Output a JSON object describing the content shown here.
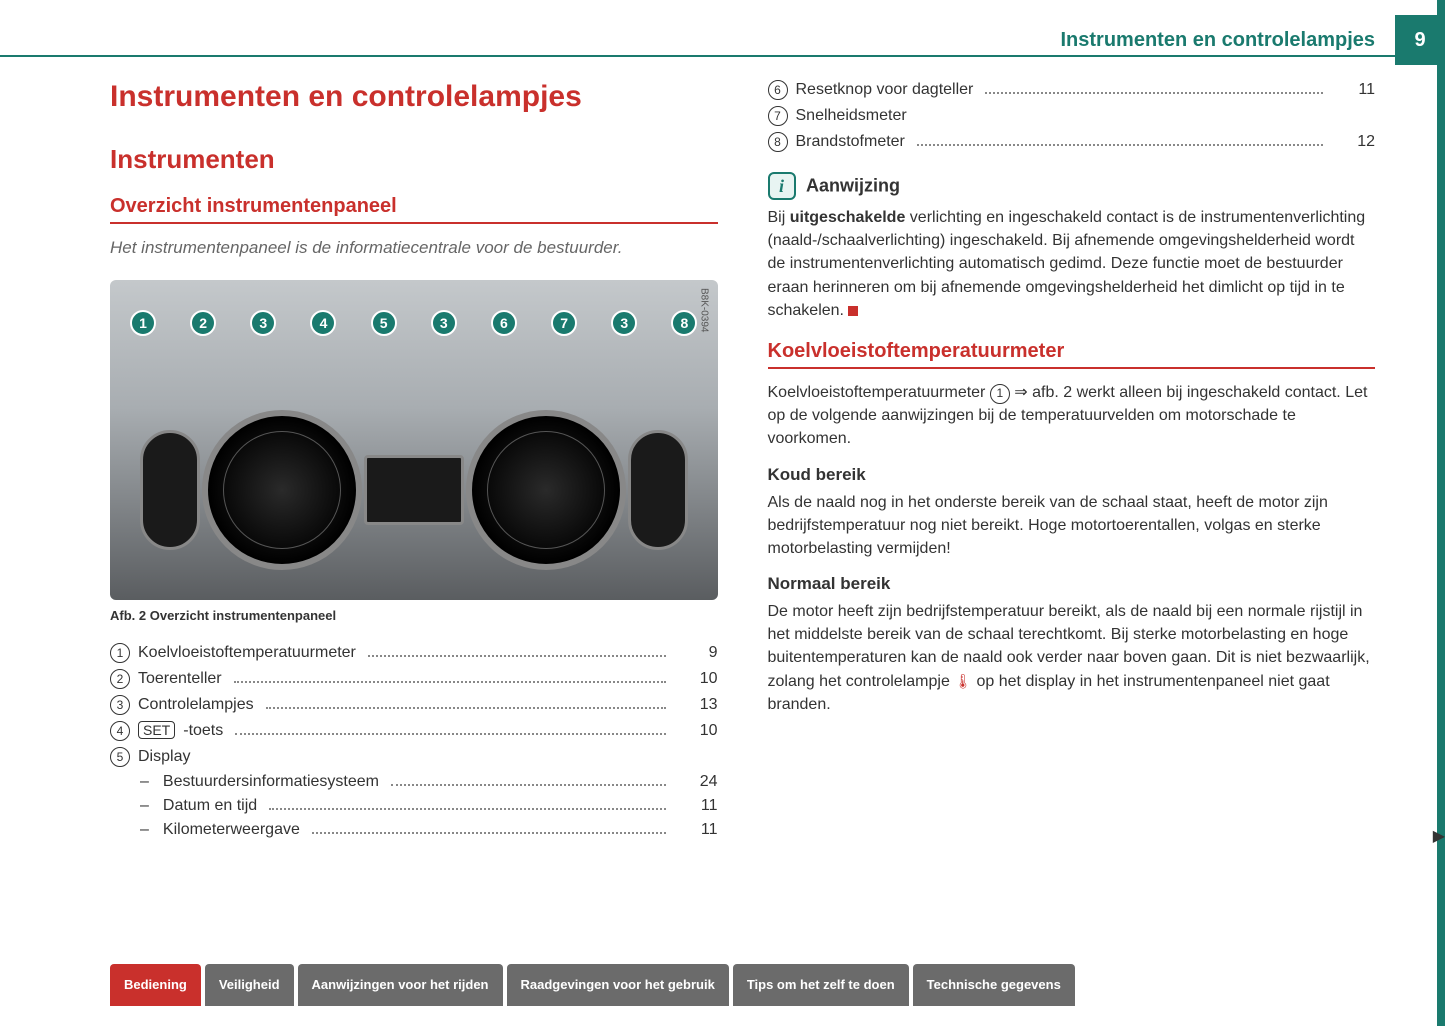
{
  "header": {
    "running_title": "Instrumenten en controlelampjes",
    "page_number": "9"
  },
  "title": "Instrumenten en controlelampjes",
  "section_title": "Instrumenten",
  "subsection_title": "Overzicht instrumentenpaneel",
  "intro": "Het instrumentenpaneel is de informatiecentrale voor de bestuurder.",
  "figure": {
    "ref_code": "B8K-0394",
    "callouts": [
      "1",
      "2",
      "3",
      "4",
      "5",
      "3",
      "6",
      "7",
      "3",
      "8"
    ],
    "caption": "Afb. 2  Overzicht instrumentenpaneel"
  },
  "toc_left": [
    {
      "num": "1",
      "label": "Koelvloeistoftemperatuurmeter",
      "page": "9",
      "key": false
    },
    {
      "num": "2",
      "label": "Toerenteller",
      "page": "10",
      "key": false
    },
    {
      "num": "3",
      "label": "Controlelampjes",
      "page": "13",
      "key": false
    },
    {
      "num": "4",
      "label": "-toets",
      "page": "10",
      "key": true,
      "keylabel": "SET"
    },
    {
      "num": "5",
      "label": "Display",
      "page": "",
      "key": false
    }
  ],
  "toc_left_sub": [
    {
      "label": "Bestuurdersinformatiesysteem",
      "page": "24"
    },
    {
      "label": "Datum en tijd",
      "page": "11"
    },
    {
      "label": "Kilometerweergave",
      "page": "11"
    }
  ],
  "toc_right": [
    {
      "num": "6",
      "label": "Resetknop voor dagteller",
      "page": "11"
    },
    {
      "num": "7",
      "label": "Snelheidsmeter",
      "page": ""
    },
    {
      "num": "8",
      "label": "Brandstofmeter",
      "page": "12"
    }
  ],
  "info": {
    "title": "Aanwijzing",
    "body_pre": "Bij ",
    "body_bold": "uitgeschakelde",
    "body_post": " verlichting en ingeschakeld contact is de instrumentenverlichting (naald-/schaalverlichting) ingeschakeld. Bij afnemende omgevingshelderheid wordt de instrumentenverlichting automatisch gedimd. Deze functie moet de bestuurder eraan herinneren om bij afnemende omgevingshelderheid het dimlicht op tijd in te schakelen."
  },
  "section2": {
    "title": "Koelvloeistoftemperatuurmeter",
    "para1_pre": "Koelvloeistoftemperatuurmeter ",
    "para1_ref": "1",
    "para1_post": " ⇒ afb. 2 werkt alleen bij ingeschakeld contact. Let op de volgende aanwijzingen bij de temperatuurvelden om motorschade te voorkomen.",
    "h_cold": "Koud bereik",
    "p_cold": "Als de naald nog in het onderste bereik van de schaal staat, heeft de motor zijn bedrijfstemperatuur nog niet bereikt. Hoge motortoerentallen, volgas en sterke motorbelasting vermijden!",
    "h_norm": "Normaal bereik",
    "p_norm_a": "De motor heeft zijn bedrijfstemperatuur bereikt, als de naald bij een normale rijstijl in het middelste bereik van de schaal terechtkomt. Bij sterke motorbelasting en hoge buitentemperaturen kan de naald ook verder naar boven gaan. Dit is niet bezwaarlijk, zolang het controlelampje ",
    "p_norm_b": " op het display in het instrumentenpaneel niet gaat branden."
  },
  "nav": {
    "tabs": [
      {
        "label": "Bediening",
        "active": true
      },
      {
        "label": "Veiligheid",
        "active": false
      },
      {
        "label": "Aanwijzingen voor het rijden",
        "active": false
      },
      {
        "label": "Raadgevingen voor het gebruik",
        "active": false
      },
      {
        "label": "Tips om het zelf te doen",
        "active": false
      },
      {
        "label": "Technische gegevens",
        "active": false
      }
    ]
  },
  "colors": {
    "brand_red": "#c9302c",
    "brand_teal": "#1a7a6e",
    "nav_grey": "#6b6b6b",
    "text": "#333333",
    "muted": "#666666"
  }
}
